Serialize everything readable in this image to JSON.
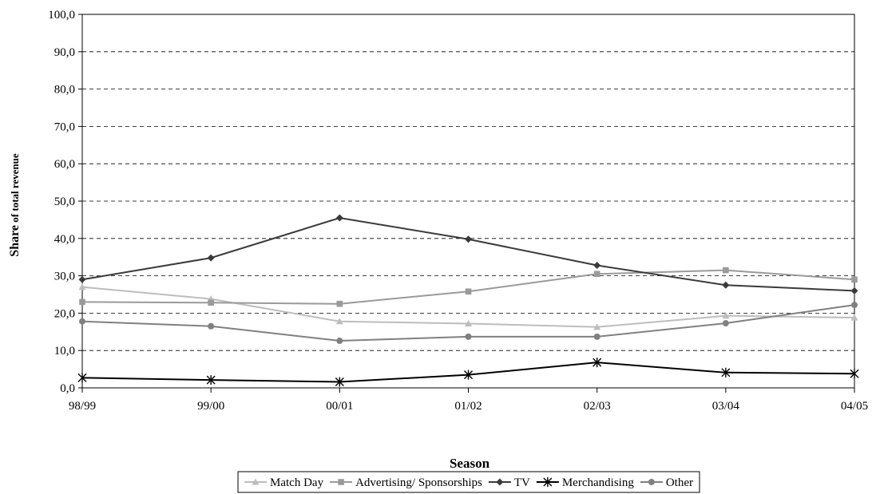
{
  "chart_data": {
    "type": "line",
    "title": "",
    "xlabel": "Season",
    "ylabel_main": "Share",
    "ylabel_rest": " of total revenue",
    "categories": [
      "98/99",
      "99/00",
      "00/01",
      "01/02",
      "02/03",
      "03/04",
      "04/05"
    ],
    "ylim": [
      0,
      100
    ],
    "yticks": [
      0,
      10,
      20,
      30,
      40,
      50,
      60,
      70,
      80,
      90,
      100
    ],
    "ytick_labels": [
      "0,0",
      "10,0",
      "20,0",
      "30,0",
      "40,0",
      "50,0",
      "60,0",
      "70,0",
      "80,0",
      "90,0",
      "100,0"
    ],
    "grid": "horizontal-dashed",
    "legend_position": "bottom",
    "series": [
      {
        "name": "Match Day",
        "marker": "triangle",
        "color": "#bdbdbd",
        "values": [
          27.0,
          23.8,
          17.8,
          17.2,
          16.3,
          19.3,
          18.8
        ]
      },
      {
        "name": "Advertising/ Sponsorships",
        "marker": "square",
        "color": "#9a9a9a",
        "values": [
          23.0,
          22.8,
          22.5,
          25.8,
          30.5,
          31.5,
          29.0
        ]
      },
      {
        "name": "TV",
        "marker": "diamond",
        "color": "#3a3a3a",
        "values": [
          29.0,
          34.8,
          45.5,
          39.8,
          32.8,
          27.5,
          26.0
        ]
      },
      {
        "name": "Merchandising",
        "marker": "asterisk",
        "color": "#000000",
        "values": [
          2.7,
          2.1,
          1.6,
          3.5,
          6.8,
          4.1,
          3.8
        ]
      },
      {
        "name": "Other",
        "marker": "circle",
        "color": "#808080",
        "values": [
          17.8,
          16.5,
          12.6,
          13.7,
          13.7,
          17.3,
          22.2
        ]
      }
    ]
  }
}
